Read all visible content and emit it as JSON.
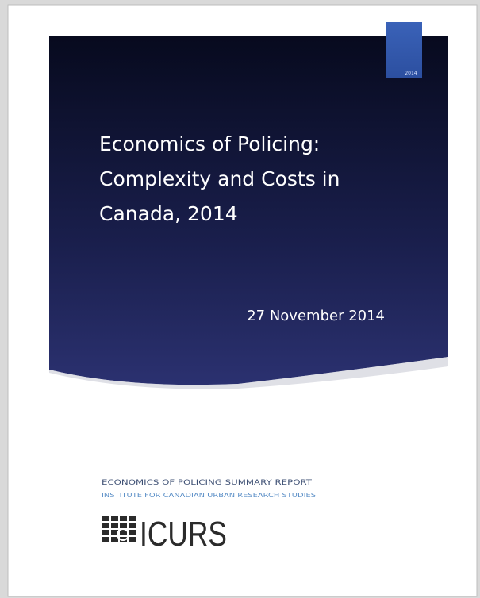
{
  "cover": {
    "tab_label": "2014",
    "title_lines": [
      "Economics of Policing:",
      "Complexity and Costs in",
      "Canada, 2014"
    ],
    "date": "27 November 2014",
    "report_line": "ECONOMICS OF POLICING SUMMARY REPORT",
    "institute_line": "INSTITUTE FOR CANADIAN URBAN RESEARCH STUDIES",
    "logo_text": "ICURS"
  }
}
